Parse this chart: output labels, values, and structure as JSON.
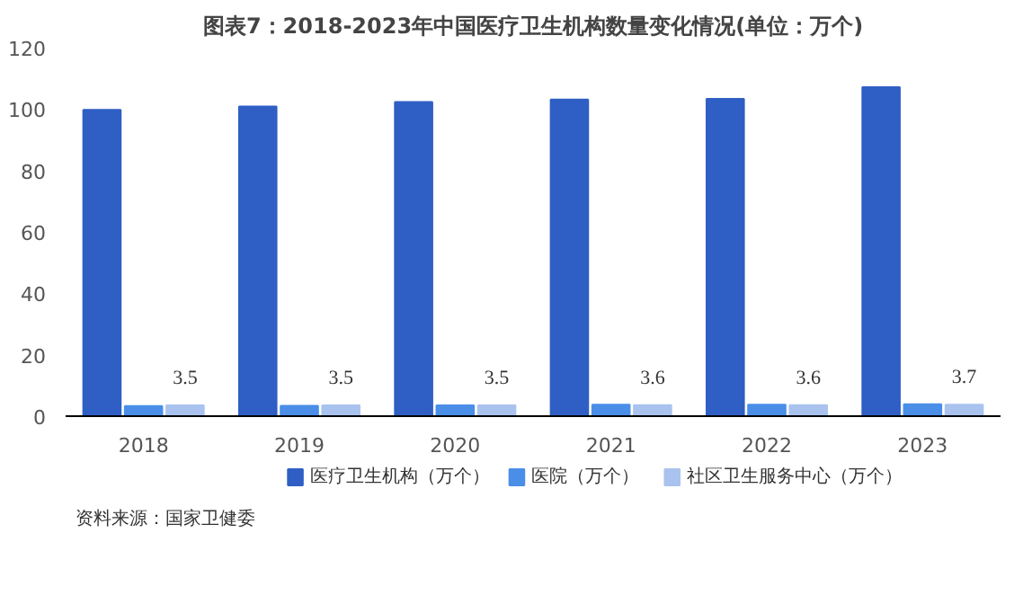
{
  "chart_data": {
    "type": "bar",
    "title": "图表7：2018-2023年中国医疗卫生机构数量变化情况(单位：万个)",
    "categories": [
      "2018",
      "2019",
      "2020",
      "2021",
      "2022",
      "2023"
    ],
    "series": [
      {
        "name": "医疗卫生机构（万个）",
        "color": "#2f5fc4",
        "values": [
          99.7,
          100.8,
          102.3,
          103.1,
          103.3,
          107.1
        ]
      },
      {
        "name": "医院（万个）",
        "color": "#4a8ee8",
        "values": [
          3.3,
          3.4,
          3.5,
          3.7,
          3.7,
          3.9
        ]
      },
      {
        "name": "社区卫生服务中心（万个）",
        "color": "#a9c3ee",
        "values": [
          3.5,
          3.5,
          3.5,
          3.6,
          3.6,
          3.7
        ],
        "value_labels": [
          "3.5",
          "3.5",
          "3.5",
          "3.6",
          "3.6",
          "3.7"
        ]
      }
    ],
    "ylim": [
      0,
      120
    ],
    "yticks": [
      0,
      20,
      40,
      60,
      80,
      100,
      120
    ],
    "grid": false,
    "legend": "bottom",
    "annotations": [
      "资料来源：国家卫健委"
    ]
  }
}
